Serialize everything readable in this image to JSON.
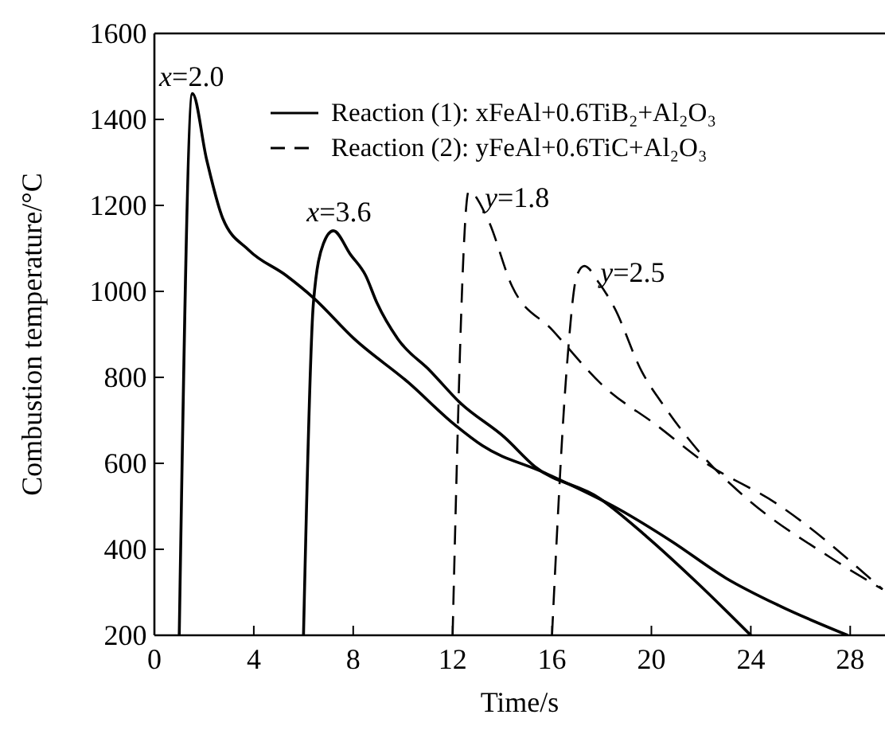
{
  "chart_data": {
    "type": "line",
    "xlabel": "Time/s",
    "ylabel": "Combustion temperature/°C",
    "xlim": [
      0,
      29.4
    ],
    "ylim": [
      200,
      1600
    ],
    "xticks": [
      0,
      4,
      8,
      12,
      16,
      20,
      24,
      28
    ],
    "yticks": [
      200,
      400,
      600,
      800,
      1000,
      1200,
      1400,
      1600
    ],
    "grid": false,
    "legend": "top",
    "annotations": [
      "Reaction (1): xFeAl+0.6TiB₂+Al₂O₃",
      "Reaction (2): yFeAl+0.6TiC+Al₂O₃"
    ],
    "series": [
      {
        "name": "x=2.0",
        "color": "#000000",
        "line_style": "solid",
        "x": [
          1.0,
          1.53,
          2.1,
          2.75,
          3.8,
          5.3,
          6.4,
          8.05,
          10.2,
          12.1,
          13.2,
          15.7,
          18.7,
          20.8,
          23.0,
          25.1,
          27.9
        ],
        "values": [
          200,
          1460,
          1307,
          1170,
          1096,
          1037,
          985,
          889,
          789,
          689,
          641,
          578,
          493,
          419,
          333,
          270,
          200
        ]
      },
      {
        "name": "x=3.6",
        "color": "#000000",
        "line_style": "solid",
        "x": [
          6.0,
          6.4,
          6.8,
          7.2,
          7.9,
          8.5,
          8.95,
          9.8,
          11.1,
          12.3,
          14.1,
          15.3,
          17.9,
          19.8,
          21.9,
          24.0
        ],
        "values": [
          200,
          974,
          1111,
          1141,
          1085,
          1037,
          974,
          889,
          815,
          741,
          660,
          593,
          519,
          430,
          319,
          200
        ]
      },
      {
        "name": "y=1.8",
        "color": "#000000",
        "line_style": "dashed",
        "x": [
          12.0,
          12.65,
          13.4,
          14.4,
          16.0,
          18.1,
          20.2,
          22.1,
          25.1,
          29.3
        ],
        "values": [
          200,
          1233,
          1170,
          1011,
          911,
          778,
          689,
          604,
          504,
          307
        ]
      },
      {
        "name": "y=2.5",
        "color": "#000000",
        "line_style": "dashed",
        "x": [
          16.0,
          16.6,
          17.0,
          17.3,
          17.9,
          18.5,
          19.6,
          20.6,
          22.1,
          23.6,
          27.2,
          29.3
        ],
        "values": [
          200,
          826,
          1037,
          1059,
          1019,
          963,
          815,
          726,
          615,
          530,
          381,
          307
        ]
      }
    ]
  }
}
